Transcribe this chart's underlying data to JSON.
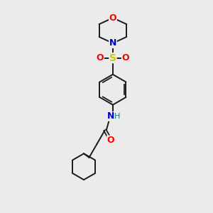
{
  "background_color": "#ebebeb",
  "line_color": "#1a1a1a",
  "colors": {
    "O": "#ff0000",
    "N": "#0000cc",
    "S": "#cccc00",
    "H": "#008080",
    "C": "#1a1a1a"
  },
  "figsize": [
    3.0,
    3.0
  ],
  "dpi": 100
}
